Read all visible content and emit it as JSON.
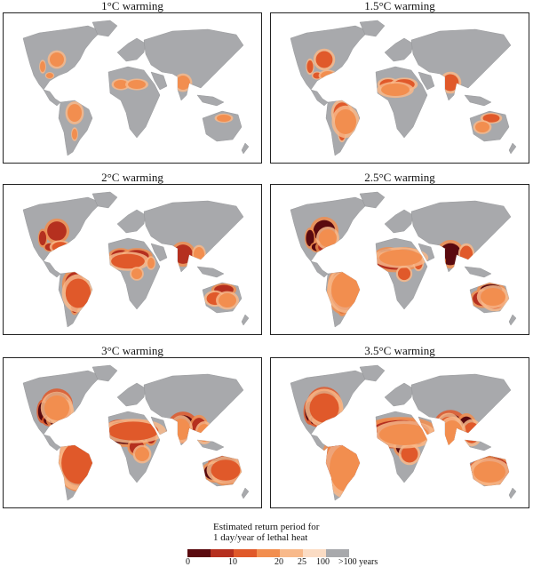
{
  "panels": [
    {
      "id": "p1",
      "title": "1°C warming",
      "level": 0
    },
    {
      "id": "p2",
      "title": "1.5°C warming",
      "level": 1
    },
    {
      "id": "p3",
      "title": "2°C warming",
      "level": 2
    },
    {
      "id": "p4",
      "title": "2.5°C warming",
      "level": 3
    },
    {
      "id": "p5",
      "title": "3°C warming",
      "level": 4
    },
    {
      "id": "p6",
      "title": "3.5°C warming",
      "level": 5
    }
  ],
  "legend": {
    "title_line1": "Estimated return period for",
    "title_line2": "1 day/year of lethal heat",
    "colors": [
      "#5a0a0f",
      "#b5301f",
      "#e0592a",
      "#f28e4f",
      "#f8b98a",
      "#fbdcc4",
      "#a8a9ac"
    ],
    "ticks": [
      "0",
      "10",
      "20",
      "25",
      "100",
      ">100 years"
    ]
  },
  "colors": {
    "land": "#a8a9ac",
    "border": "#8d8e91",
    "frame": "#222222"
  }
}
